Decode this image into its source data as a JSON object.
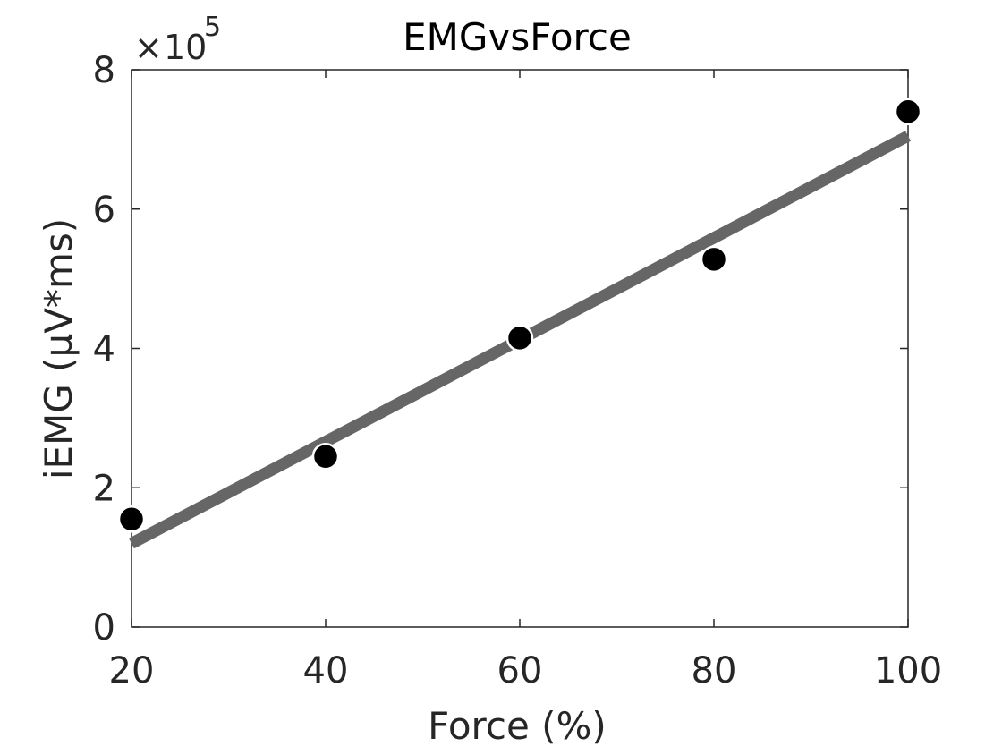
{
  "chart_data": {
    "type": "scatter",
    "title": "EMGvsForce",
    "xlabel": "Force (%)",
    "ylabel": "iEMG (μV*ms)",
    "xlim": [
      20,
      100
    ],
    "ylim": [
      0,
      8
    ],
    "y_exponent": {
      "base": "10",
      "power": "5",
      "prefix": "×"
    },
    "x_ticks": [
      20,
      40,
      60,
      80,
      100
    ],
    "y_ticks": [
      0,
      2,
      4,
      6,
      8
    ],
    "grid": false,
    "series": [
      {
        "kind": "points",
        "x": [
          20,
          40,
          60,
          80,
          100
        ],
        "y": [
          1.55,
          2.45,
          4.15,
          5.28,
          7.4
        ],
        "color": "#000000"
      },
      {
        "kind": "fit-line",
        "x": [
          20,
          100
        ],
        "y": [
          1.2,
          7.05
        ],
        "color": "#666666"
      }
    ]
  }
}
